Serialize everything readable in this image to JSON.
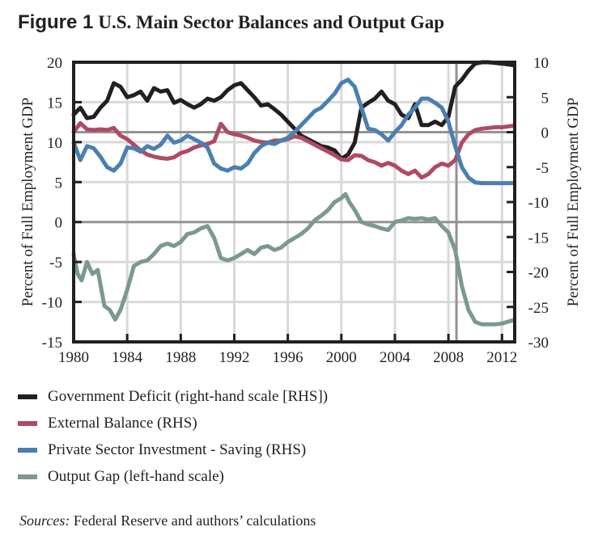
{
  "figure": {
    "label": "Figure 1",
    "title": "U.S. Main Sector Balances and Output Gap",
    "sources_label": "Sources:",
    "sources_text": " Federal Reserve and authors’ calculations"
  },
  "chart_data": {
    "type": "line",
    "title": "U.S. Main Sector Balances and Output Gap",
    "xlabel": "",
    "ylabel": "Percent of Full Employment GDP",
    "ylabel_right": "Percent of Full Employment GDP",
    "xlim": [
      1980,
      2013
    ],
    "ylim": [
      -15,
      20
    ],
    "ylim_right": [
      -30,
      10
    ],
    "x_ticks": [
      1980,
      1984,
      1988,
      1992,
      1996,
      2000,
      2004,
      2008,
      2012
    ],
    "y_ticks_left": [
      20,
      15,
      10,
      5,
      0,
      -5,
      -10,
      -15
    ],
    "y_ticks_right": [
      10,
      5,
      0,
      -5,
      -10,
      -15,
      -20,
      -25,
      -30
    ],
    "grid": true,
    "vertical_marker_x": 2008.6,
    "legend_position": "bottom",
    "series": [
      {
        "name": "Government Deficit (right-hand scale [RHS])",
        "axis": "right",
        "color": "#231f20",
        "x": [
          1980,
          1980.5,
          1981,
          1981.5,
          1982,
          1982.5,
          1983,
          1983.5,
          1984,
          1984.5,
          1985,
          1985.5,
          1986,
          1986.5,
          1987,
          1987.5,
          1988,
          1988.5,
          1989,
          1989.5,
          1990,
          1990.5,
          1991,
          1991.5,
          1992,
          1992.5,
          1993,
          1993.5,
          1994,
          1994.5,
          1995,
          1995.5,
          1996,
          1996.5,
          1997,
          1997.5,
          1998,
          1998.5,
          1999,
          1999.5,
          2000,
          2000.5,
          2001,
          2001.5,
          2002,
          2002.5,
          2003,
          2003.5,
          2004,
          2004.5,
          2005,
          2005.5,
          2006,
          2006.5,
          2007,
          2007.5,
          2008,
          2008.5,
          2009,
          2009.5,
          2010,
          2010.5,
          2011,
          2011.5,
          2012,
          2012.8
        ],
        "values": [
          2.5,
          3.5,
          2.0,
          2.2,
          3.5,
          4.5,
          7.0,
          6.5,
          5.0,
          5.3,
          5.8,
          4.5,
          6.3,
          5.8,
          6.0,
          4.2,
          4.6,
          4.0,
          3.5,
          4.0,
          4.8,
          4.5,
          5.0,
          6.0,
          6.7,
          7.0,
          6.0,
          5.0,
          3.8,
          4.0,
          3.3,
          2.5,
          1.5,
          0.5,
          -0.5,
          -1.0,
          -1.5,
          -2.0,
          -2.2,
          -2.6,
          -3.8,
          -3.2,
          -1.5,
          3.5,
          4.2,
          4.8,
          5.8,
          4.5,
          4.0,
          2.5,
          2.0,
          4.0,
          1.0,
          1.0,
          1.5,
          1.0,
          2.2,
          6.5,
          7.5,
          8.8,
          9.8,
          10.0,
          10.0,
          9.9,
          9.8,
          9.6
        ]
      },
      {
        "name": "External Balance (RHS)",
        "axis": "right",
        "color": "#b04a64",
        "x": [
          1980,
          1980.5,
          1981,
          1981.5,
          1982,
          1982.5,
          1983,
          1983.5,
          1984,
          1984.5,
          1985,
          1985.5,
          1986,
          1986.5,
          1987,
          1987.5,
          1988,
          1988.5,
          1989,
          1989.5,
          1990,
          1990.5,
          1991,
          1991.5,
          1992,
          1992.5,
          1993,
          1993.5,
          1994,
          1994.5,
          1995,
          1995.5,
          1996,
          1996.5,
          1997,
          1997.5,
          1998,
          1998.5,
          1999,
          1999.5,
          2000,
          2000.5,
          2001,
          2001.5,
          2002,
          2002.5,
          2003,
          2003.5,
          2004,
          2004.5,
          2005,
          2005.5,
          2006,
          2006.5,
          2007,
          2007.5,
          2008,
          2008.5,
          2009,
          2009.5,
          2010,
          2010.5,
          2011,
          2011.5,
          2012,
          2012.8
        ],
        "values": [
          0.0,
          1.3,
          0.4,
          0.3,
          0.4,
          0.3,
          0.6,
          -0.5,
          -1.0,
          -1.8,
          -2.6,
          -3.2,
          -3.5,
          -3.7,
          -3.8,
          -3.6,
          -3.0,
          -2.7,
          -2.2,
          -1.9,
          -1.7,
          -1.3,
          1.2,
          0.0,
          -0.3,
          -0.5,
          -0.8,
          -1.2,
          -1.4,
          -1.5,
          -1.2,
          -1.2,
          -1.0,
          -0.6,
          -0.8,
          -1.3,
          -1.8,
          -2.3,
          -2.8,
          -3.3,
          -3.9,
          -4.0,
          -3.3,
          -3.4,
          -4.0,
          -4.3,
          -4.8,
          -4.4,
          -4.8,
          -5.5,
          -6.0,
          -5.5,
          -6.5,
          -6.0,
          -5.0,
          -4.5,
          -4.8,
          -4.0,
          -1.5,
          -0.3,
          0.3,
          0.5,
          0.6,
          0.7,
          0.7,
          0.9
        ]
      },
      {
        "name": "Private Sector Investment - Saving (RHS)",
        "axis": "right",
        "color": "#4a7fb0",
        "x": [
          1980,
          1980.5,
          1981,
          1981.5,
          1982,
          1982.5,
          1983,
          1983.5,
          1984,
          1984.5,
          1985,
          1985.5,
          1986,
          1986.5,
          1987,
          1987.5,
          1988,
          1988.5,
          1989,
          1989.5,
          1990,
          1990.5,
          1991,
          1991.5,
          1992,
          1992.5,
          1993,
          1993.5,
          1994,
          1994.5,
          1995,
          1995.5,
          1996,
          1996.5,
          1997,
          1997.5,
          1998,
          1998.5,
          1999,
          1999.5,
          2000,
          2000.5,
          2001,
          2001.5,
          2002,
          2002.5,
          2003,
          2003.5,
          2004,
          2004.5,
          2005,
          2005.5,
          2006,
          2006.5,
          2007,
          2007.5,
          2008,
          2008.5,
          2009,
          2009.5,
          2010,
          2010.5,
          2011,
          2011.5,
          2012,
          2012.8
        ],
        "values": [
          -1.5,
          -4.0,
          -2.0,
          -2.3,
          -3.5,
          -5.0,
          -5.5,
          -4.5,
          -2.2,
          -2.3,
          -2.8,
          -2.0,
          -2.4,
          -1.8,
          -0.5,
          -1.5,
          -1.2,
          -0.5,
          -1.0,
          -1.5,
          -2.2,
          -4.5,
          -5.2,
          -5.5,
          -5.0,
          -5.2,
          -4.5,
          -3.0,
          -2.0,
          -1.5,
          -1.7,
          -1.2,
          -0.8,
          0.0,
          1.0,
          2.0,
          3.0,
          3.5,
          4.5,
          5.5,
          7.0,
          7.5,
          6.5,
          3.5,
          0.5,
          0.3,
          -0.3,
          -1.2,
          0.0,
          1.0,
          2.5,
          3.5,
          4.8,
          4.8,
          4.2,
          3.5,
          1.5,
          -2.0,
          -5.0,
          -6.5,
          -7.2,
          -7.3,
          -7.3,
          -7.3,
          -7.3,
          -7.3
        ]
      },
      {
        "name": "Output Gap (left-hand scale)",
        "axis": "left",
        "color": "#7a9a8c",
        "x": [
          1980,
          1980.3,
          1980.6,
          1981,
          1981.4,
          1981.8,
          1982.3,
          1982.7,
          1983.1,
          1983.5,
          1984,
          1984.5,
          1985,
          1985.5,
          1986,
          1986.5,
          1987,
          1987.5,
          1988,
          1988.5,
          1989,
          1989.5,
          1990,
          1990.5,
          1991,
          1991.5,
          1992,
          1992.5,
          1993,
          1993.5,
          1994,
          1994.5,
          1995,
          1995.5,
          1996,
          1996.5,
          1997,
          1997.5,
          1998,
          1998.5,
          1999,
          1999.5,
          2000,
          2000.3,
          2000.6,
          2001,
          2001.5,
          2002,
          2002.5,
          2003,
          2003.5,
          2004,
          2004.5,
          2005,
          2005.5,
          2006,
          2006.5,
          2007,
          2007.5,
          2008,
          2008.5,
          2009,
          2009.5,
          2010,
          2010.5,
          2011,
          2011.5,
          2012,
          2012.8
        ],
        "values": [
          -4.0,
          -6.5,
          -7.3,
          -5.0,
          -6.5,
          -6.0,
          -10.5,
          -11.0,
          -12.2,
          -11.0,
          -8.5,
          -5.5,
          -5.0,
          -4.8,
          -4.0,
          -3.0,
          -2.7,
          -3.0,
          -2.5,
          -1.5,
          -1.3,
          -0.8,
          -0.5,
          -2.0,
          -4.5,
          -4.8,
          -4.5,
          -4.0,
          -3.5,
          -4.0,
          -3.2,
          -3.0,
          -3.5,
          -3.2,
          -2.5,
          -2.0,
          -1.5,
          -0.8,
          0.2,
          0.8,
          1.5,
          2.5,
          3.0,
          3.5,
          2.5,
          1.5,
          0.0,
          -0.3,
          -0.5,
          -0.8,
          -1.0,
          0.0,
          0.2,
          0.5,
          0.4,
          0.5,
          0.3,
          0.5,
          -0.5,
          -1.3,
          -3.5,
          -8.0,
          -11.0,
          -12.5,
          -12.8,
          -12.8,
          -12.8,
          -12.7,
          -12.3
        ]
      }
    ]
  },
  "legend": [
    {
      "label": "Government Deficit (right-hand scale [RHS])",
      "color": "#231f20"
    },
    {
      "label": "External Balance (RHS)",
      "color": "#b04a64"
    },
    {
      "label": "Private Sector Investment - Saving (RHS)",
      "color": "#4a7fb0"
    },
    {
      "label": "Output Gap (left-hand scale)",
      "color": "#7a9a8c"
    }
  ]
}
